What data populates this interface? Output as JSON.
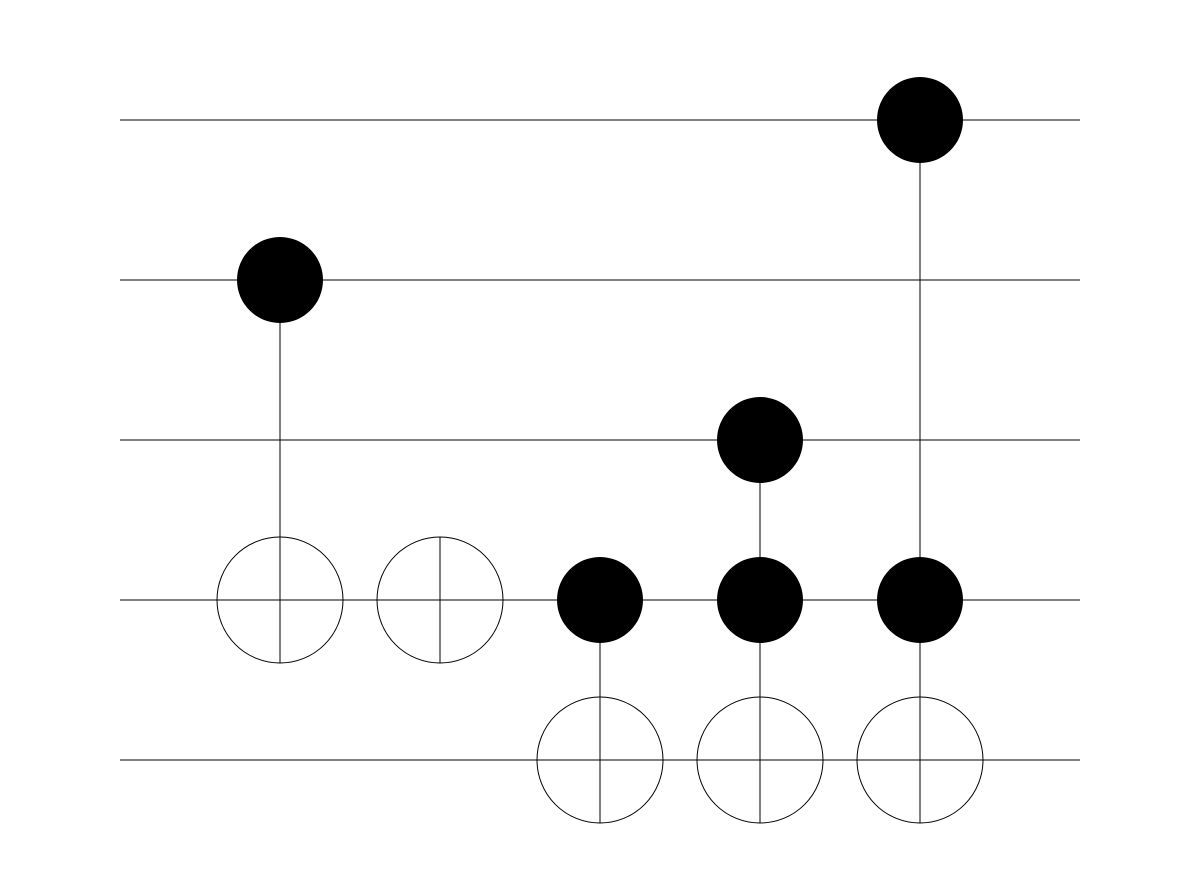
{
  "circuit": {
    "colors": {
      "background": "#ffffff",
      "ink": "#000000"
    },
    "wires": 5,
    "gates": [
      {
        "type": "cnot",
        "controls": [
          1
        ],
        "target": 3
      },
      {
        "type": "not",
        "target": 3
      },
      {
        "type": "cnot",
        "controls": [
          3
        ],
        "target": 4
      },
      {
        "type": "toffoli",
        "controls": [
          2,
          3
        ],
        "target": 4
      },
      {
        "type": "toffoli",
        "controls": [
          0,
          3
        ],
        "target": 4
      }
    ]
  }
}
